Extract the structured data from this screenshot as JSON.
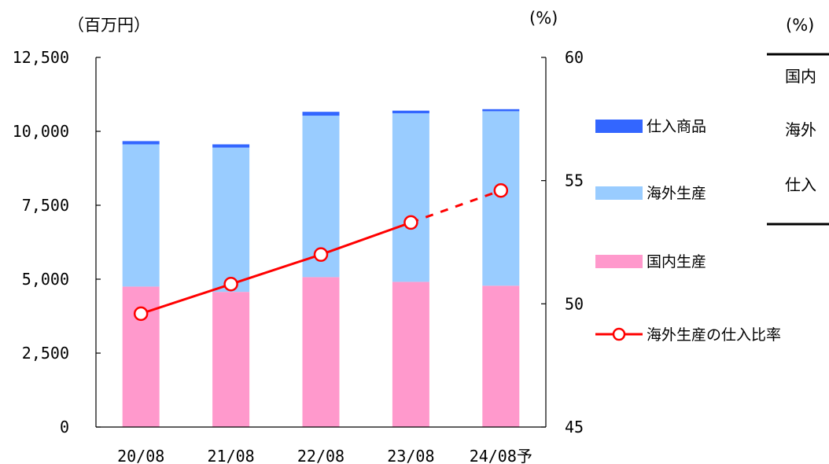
{
  "chart_data": {
    "type": "bar",
    "stacked": true,
    "left_unit": "（百万円）",
    "right_unit": "(%)",
    "categories": [
      "20/08",
      "21/08",
      "22/08",
      "23/08",
      "24/08予"
    ],
    "left_axis": {
      "ylim": [
        0,
        12500
      ],
      "ticks": [
        "0",
        "2,500",
        "5,000",
        "7,500",
        "10,000",
        "12,500"
      ],
      "tick_values": [
        0,
        2500,
        5000,
        7500,
        10000,
        12500
      ]
    },
    "right_axis": {
      "ylim": [
        45,
        60
      ],
      "ticks": [
        "45",
        "50",
        "55",
        "60"
      ],
      "tick_values": [
        45,
        50,
        55,
        60
      ]
    },
    "series": [
      {
        "name": "国内生産",
        "type": "bar",
        "color": "#ff99cc",
        "values": [
          4750,
          4570,
          5070,
          4910,
          4780
        ]
      },
      {
        "name": "海外生産",
        "type": "bar",
        "color": "#99ccff",
        "values": [
          4810,
          4880,
          5460,
          5700,
          5900
        ]
      },
      {
        "name": "仕入商品",
        "type": "bar",
        "color": "#3366ff",
        "values": [
          110,
          110,
          130,
          90,
          70
        ]
      },
      {
        "name": "海外生産の仕入比率",
        "type": "line",
        "axis": "right",
        "color": "#ff0000",
        "values": [
          49.6,
          50.8,
          52.0,
          53.3,
          54.6
        ],
        "forecast_from_index": 3
      }
    ],
    "legend": [
      "仕入商品",
      "海外生産",
      "国内生産",
      "海外生産の仕入比率"
    ],
    "legend_position": "right",
    "grid": false
  },
  "table": {
    "unit": "(%)",
    "rows": [
      "国内",
      "海外",
      "仕入"
    ]
  }
}
